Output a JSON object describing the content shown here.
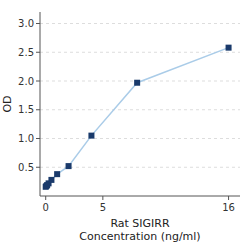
{
  "chart_data": {
    "type": "line",
    "xlabel": "Rat SIGIRR\nConcentration (ng/ml)",
    "ylabel": "OD",
    "x": [
      0.0,
      0.0625,
      0.125,
      0.25,
      0.5,
      1,
      2,
      4,
      8,
      16
    ],
    "series": [
      {
        "values": [
          0.16,
          0.175,
          0.19,
          0.22,
          0.28,
          0.38,
          0.52,
          1.05,
          1.97,
          2.58
        ],
        "color": "#aacce8",
        "colors": [
          "#1a3a6b",
          "#1a3a6b",
          "#1a3a6b",
          "#1a3a6b",
          "#1a3a6b",
          "#1a3a6b",
          "#1a3a6b",
          "#1a3a6b",
          "#1a3a6b",
          "#1a3a6b"
        ],
        "marker": "square"
      }
    ],
    "xlim": [
      -0.5,
      17
    ],
    "ylim": [
      0,
      3.2
    ],
    "xticks": [
      0,
      5,
      16
    ],
    "yticks": [
      0.5,
      {
        "value": 1.0,
        "label": "1.0"
      },
      1.5,
      {
        "value": 2.0,
        "label": "2.0"
      },
      2.5,
      {
        "value": 3.0,
        "label": "3.0"
      }
    ],
    "grid": true
  }
}
